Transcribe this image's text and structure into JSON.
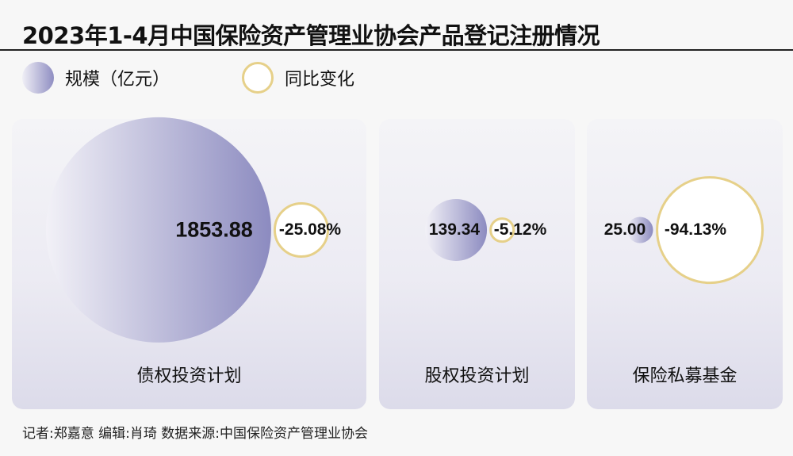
{
  "title": "2023年1-4月中国保险资产管理业协会产品登记注册情况",
  "legend": {
    "size_label": "规模（亿元）",
    "change_label": "同比变化"
  },
  "colors": {
    "size_gradient": [
      "#f2f1f7",
      "#8c8bc0"
    ],
    "change_border": "#e6d089"
  },
  "chart_data": {
    "type": "bubble",
    "title": "2023年1-4月中国保险资产管理业协会产品登记注册情况",
    "series": [
      {
        "name": "规模（亿元）"
      },
      {
        "name": "同比变化"
      }
    ],
    "categories": [
      "债权投资计划",
      "股权投资计划",
      "保险私募基金"
    ],
    "items": [
      {
        "category": "债权投资计划",
        "scale": 1853.88,
        "scale_label": "1853.88",
        "change": -25.08,
        "change_label": "-25.08%"
      },
      {
        "category": "股权投资计划",
        "scale": 139.34,
        "scale_label": "139.34",
        "change": -5.12,
        "change_label": "-5.12%"
      },
      {
        "category": "保险私募基金",
        "scale": 25.0,
        "scale_label": "25.00",
        "change": -94.13,
        "change_label": "-94.13%"
      }
    ]
  },
  "footer": "记者:郑嘉意   编辑:肖琦   数据来源:中国保险资产管理业协会"
}
